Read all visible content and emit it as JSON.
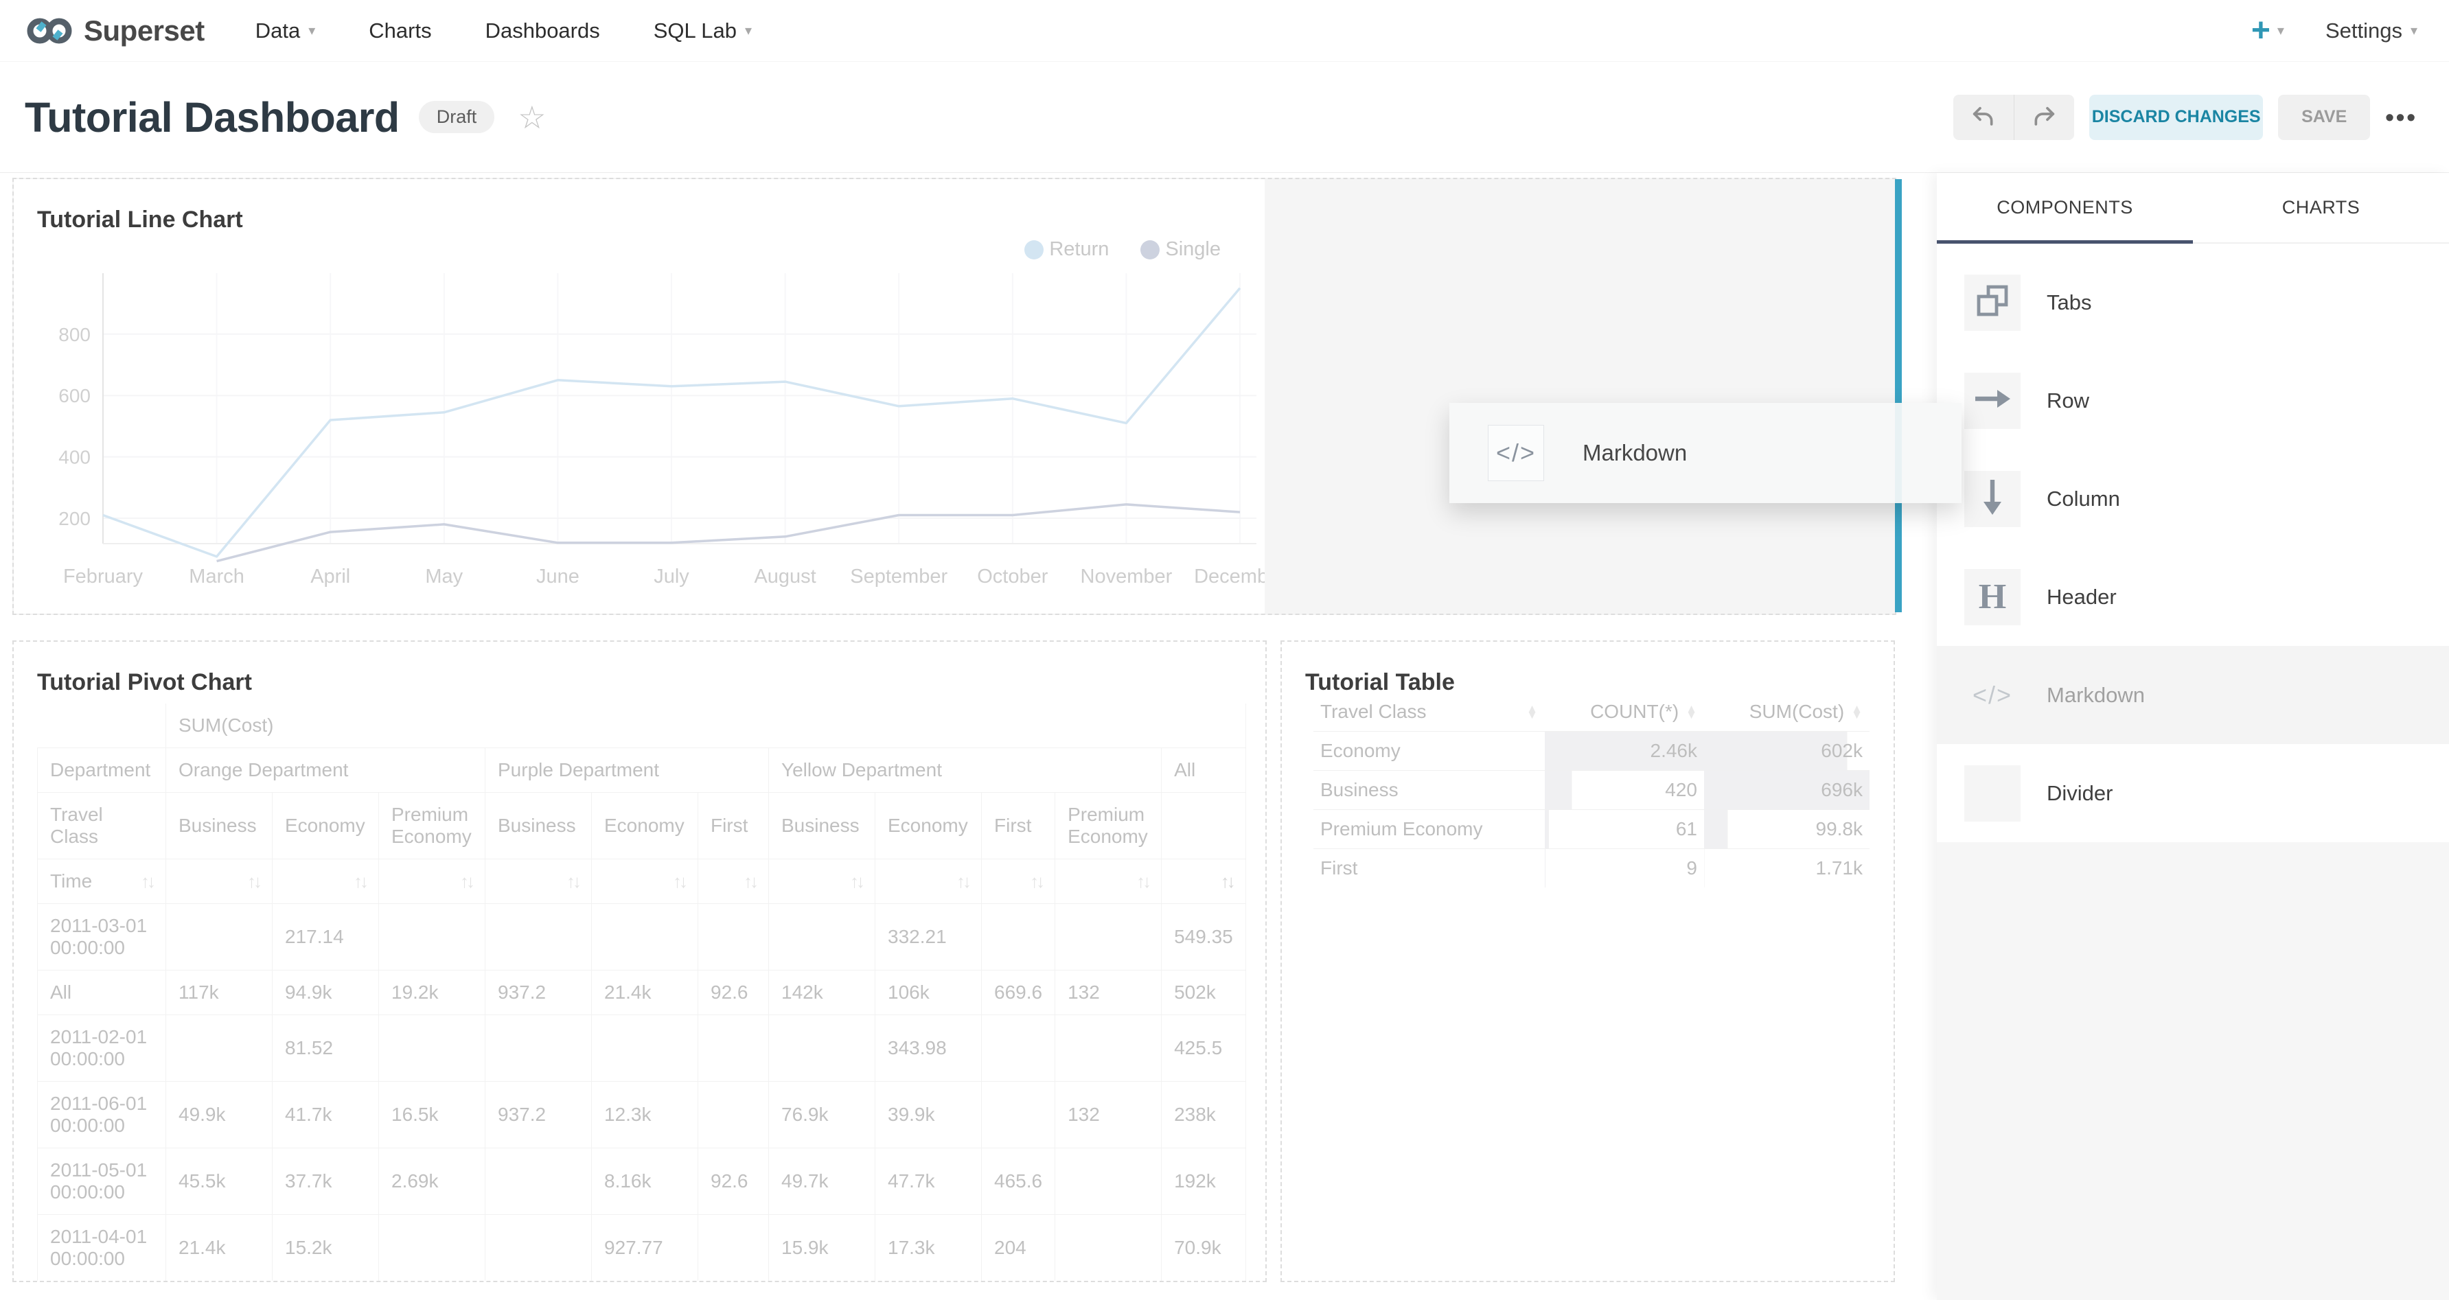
{
  "nav": {
    "brand": "Superset",
    "items": [
      {
        "label": "Data",
        "caret": true
      },
      {
        "label": "Charts",
        "caret": false
      },
      {
        "label": "Dashboards",
        "caret": false
      },
      {
        "label": "SQL Lab",
        "caret": true
      }
    ],
    "plus_label": "+",
    "settings_label": "Settings"
  },
  "header": {
    "title": "Tutorial Dashboard",
    "status_badge": "Draft",
    "star_icon": "star-outline",
    "undo_icon": "undo-arrow",
    "redo_icon": "redo-arrow",
    "discard_label": "DISCARD CHANGES",
    "save_label": "SAVE",
    "more_label": "•••"
  },
  "sidebar": {
    "tabs": [
      "COMPONENTS",
      "CHARTS"
    ],
    "active_tab": "COMPONENTS",
    "items": [
      {
        "label": "Tabs",
        "icon": "tabs-icon",
        "dragging": false
      },
      {
        "label": "Row",
        "icon": "row-arrow-icon",
        "dragging": false
      },
      {
        "label": "Column",
        "icon": "column-arrow-icon",
        "dragging": false
      },
      {
        "label": "Header",
        "icon": "header-icon",
        "dragging": false
      },
      {
        "label": "Markdown",
        "icon": "markdown-icon",
        "dragging": true
      },
      {
        "label": "Divider",
        "icon": "divider-icon",
        "dragging": false
      }
    ]
  },
  "drag": {
    "label": "Markdown",
    "icon": "markdown-icon"
  },
  "accent_colors": {
    "brand_teal": "#20a7c9",
    "drop_indicator": "#3aa3c4",
    "tab_underline": "#48536e"
  },
  "chart_data": {
    "type": "line",
    "title": "Tutorial Line Chart",
    "x": [
      "February",
      "March",
      "April",
      "May",
      "June",
      "July",
      "August",
      "September",
      "October",
      "November",
      "December"
    ],
    "series": [
      {
        "name": "Return",
        "color": "#d3e5f2",
        "values": [
          210,
          75,
          520,
          545,
          650,
          630,
          645,
          565,
          590,
          510,
          950
        ]
      },
      {
        "name": "Single",
        "color": "#cdd2df",
        "values": [
          null,
          60,
          155,
          180,
          120,
          120,
          140,
          210,
          210,
          245,
          220
        ]
      }
    ],
    "yticks": [
      200,
      400,
      600,
      800
    ],
    "ylim": [
      0,
      1000
    ],
    "grid": true,
    "legend_position": "top-right"
  },
  "pivot": {
    "title": "Tutorial Pivot Chart",
    "metric_label": "SUM(Cost)",
    "dept_label": "Department",
    "class_label": "Travel Class",
    "time_label": "Time",
    "groups": [
      {
        "name": "Orange Department",
        "cols": [
          "Business",
          "Economy",
          "Premium Economy"
        ]
      },
      {
        "name": "Purple Department",
        "cols": [
          "Business",
          "Economy",
          "First"
        ]
      },
      {
        "name": "Yellow Department",
        "cols": [
          "Business",
          "Economy",
          "First",
          "Premium Economy"
        ]
      },
      {
        "name": "All",
        "cols": [
          ""
        ]
      }
    ],
    "rows": [
      {
        "time": "2011-03-01 00:00:00",
        "values": [
          "",
          "217.14",
          "",
          "",
          "",
          "",
          "",
          "332.21",
          "",
          "",
          "549.35"
        ]
      },
      {
        "time": "All",
        "values": [
          "117k",
          "94.9k",
          "19.2k",
          "937.2",
          "21.4k",
          "92.6",
          "142k",
          "106k",
          "669.6",
          "132",
          "502k"
        ]
      },
      {
        "time": "2011-02-01 00:00:00",
        "values": [
          "",
          "81.52",
          "",
          "",
          "",
          "",
          "",
          "343.98",
          "",
          "",
          "425.5"
        ]
      },
      {
        "time": "2011-06-01 00:00:00",
        "values": [
          "49.9k",
          "41.7k",
          "16.5k",
          "937.2",
          "12.3k",
          "",
          "76.9k",
          "39.9k",
          "",
          "132",
          "238k"
        ]
      },
      {
        "time": "2011-05-01 00:00:00",
        "values": [
          "45.5k",
          "37.7k",
          "2.69k",
          "",
          "8.16k",
          "92.6",
          "49.7k",
          "47.7k",
          "465.6",
          "",
          "192k"
        ]
      },
      {
        "time": "2011-04-01 00:00:00",
        "values": [
          "21.4k",
          "15.2k",
          "",
          "",
          "927.77",
          "",
          "15.9k",
          "17.3k",
          "204",
          "",
          "70.9k"
        ]
      }
    ]
  },
  "table": {
    "title": "Tutorial Table",
    "headers": [
      "Travel Class",
      "COUNT(*)",
      "SUM(Cost)"
    ],
    "rows": [
      {
        "travel_class": "Economy",
        "count": "2.46k",
        "count_num": 2460,
        "sum": "602k",
        "sum_num": 602000
      },
      {
        "travel_class": "Business",
        "count": "420",
        "count_num": 420,
        "sum": "696k",
        "sum_num": 696000
      },
      {
        "travel_class": "Premium Economy",
        "count": "61",
        "count_num": 61,
        "sum": "99.8k",
        "sum_num": 99800
      },
      {
        "travel_class": "First",
        "count": "9",
        "count_num": 9,
        "sum": "1.71k",
        "sum_num": 1710
      }
    ]
  }
}
